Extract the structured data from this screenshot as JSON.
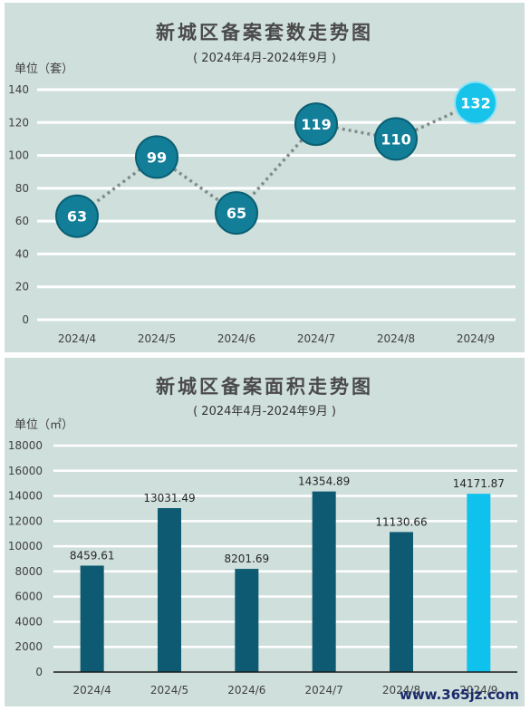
{
  "chart_data": [
    {
      "type": "line",
      "title": "新城区备案套数走势图",
      "subtitle": "( 2024年4月-2024年9月 )",
      "ylabel": "单位（套）",
      "categories": [
        "2024/4",
        "2024/5",
        "2024/6",
        "2024/7",
        "2024/8",
        "2024/9"
      ],
      "values": [
        63,
        99,
        65,
        119,
        110,
        132
      ],
      "value_labels": [
        "63",
        "99",
        "65",
        "119",
        "110",
        "132"
      ],
      "yticks": [
        "0",
        "20",
        "40",
        "60",
        "80",
        "100",
        "120",
        "140"
      ],
      "ylim": [
        0,
        140
      ],
      "grid": true,
      "line_style": "dotted",
      "colors": {
        "marker": "#127e98",
        "highlight": "#17c3e8",
        "line": "#7f8c8c",
        "background": "#cfdfdc",
        "grid": "#ffffff"
      }
    },
    {
      "type": "bar",
      "title": "新城区备案面积走势图",
      "subtitle": "( 2024年4月-2024年9月 )",
      "ylabel": "单位（㎡）",
      "categories": [
        "2024/4",
        "2024/5",
        "2024/6",
        "2024/7",
        "2024/8",
        "2024/9"
      ],
      "values": [
        8459.61,
        13031.49,
        8201.69,
        14354.89,
        11130.66,
        14171.87
      ],
      "value_labels": [
        "8459.61",
        "13031.49",
        "8201.69",
        "14354.89",
        "11130.66",
        "14171.87"
      ],
      "yticks": [
        "0",
        "2000",
        "4000",
        "6000",
        "8000",
        "10000",
        "12000",
        "14000",
        "16000",
        "18000"
      ],
      "ylim": [
        0,
        18000
      ],
      "grid": true,
      "colors": {
        "bar": "#0d5a72",
        "highlight": "#0fc2ee",
        "background": "#cfdfdc",
        "grid": "#ffffff"
      }
    }
  ],
  "watermark": "www.365jz.com"
}
